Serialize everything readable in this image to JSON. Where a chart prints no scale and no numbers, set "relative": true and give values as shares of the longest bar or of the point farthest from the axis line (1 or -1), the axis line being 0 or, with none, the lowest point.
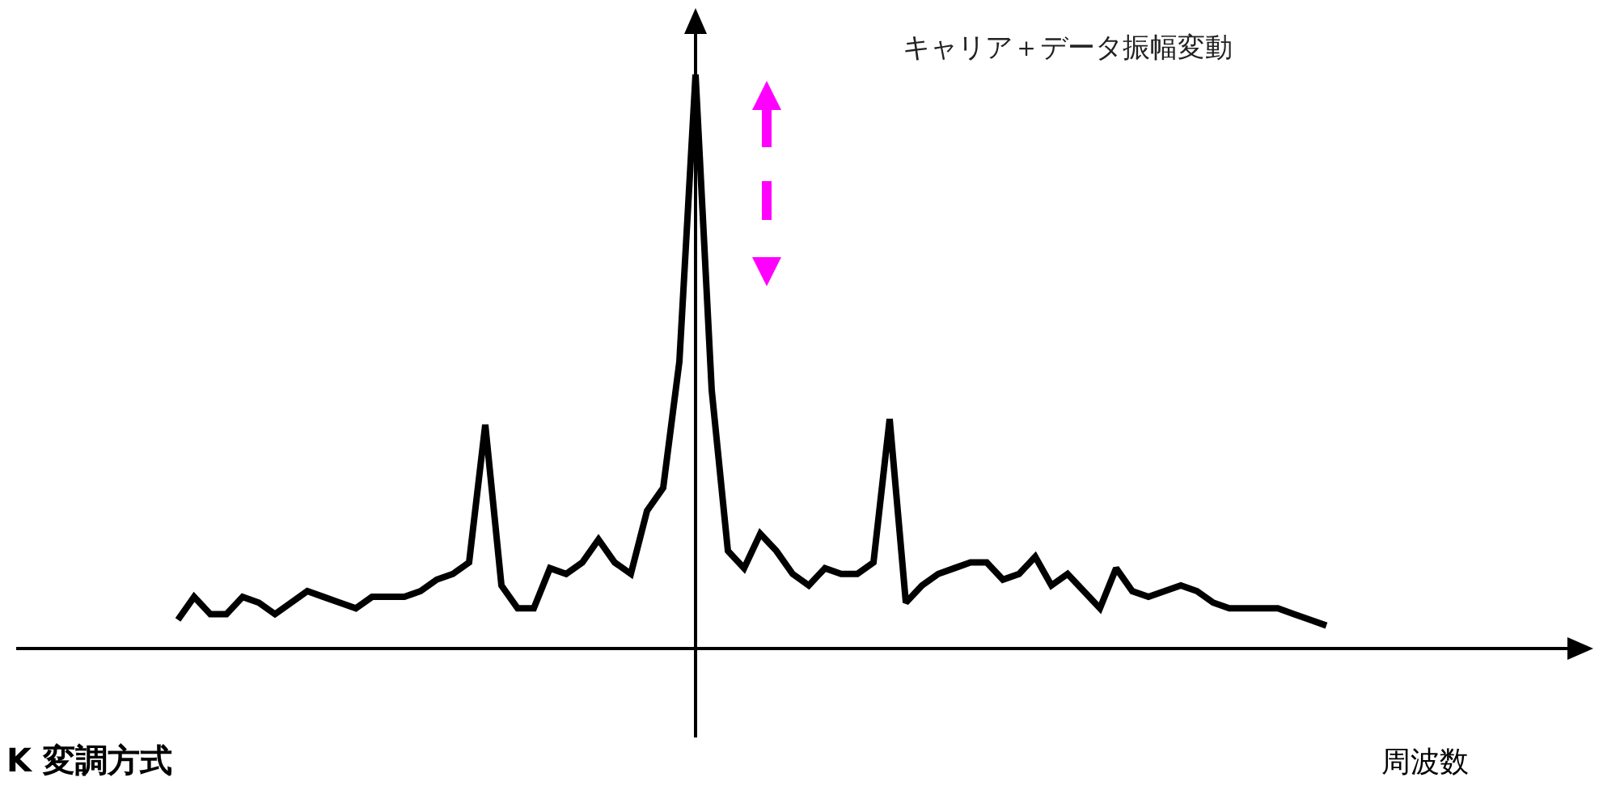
{
  "chart_data": {
    "type": "line",
    "relative": true,
    "xlabel": "周波数",
    "annotations": [
      "キャリア＋データ振幅変動",
      "K 変調方式"
    ],
    "categories": [
      null,
      null,
      null,
      null,
      null,
      null,
      null,
      null,
      null,
      null,
      null,
      null,
      null,
      null,
      null,
      null,
      null,
      null,
      null,
      null,
      null,
      null,
      null,
      null,
      null,
      null,
      null,
      null,
      null,
      null,
      null,
      null,
      null,
      null,
      null,
      null,
      null,
      null,
      null,
      null,
      null,
      null,
      null,
      null,
      null,
      null,
      null,
      null,
      null,
      null,
      null,
      null,
      null,
      null,
      null,
      null,
      null,
      null,
      null,
      null,
      null,
      null,
      null,
      null,
      null,
      null,
      null,
      null,
      null,
      null,
      null,
      null
    ],
    "series": [
      {
        "color": "#000000",
        "values": [
          0.05,
          0.09,
          0.06,
          0.06,
          0.09,
          0.08,
          0.06,
          0.08,
          0.1,
          0.09,
          0.08,
          0.07,
          0.09,
          0.09,
          0.09,
          0.1,
          0.12,
          0.13,
          0.15,
          0.39,
          0.11,
          0.07,
          0.07,
          0.14,
          0.13,
          0.15,
          0.19,
          0.15,
          0.13,
          0.24,
          0.28,
          0.5,
          1.0,
          0.45,
          0.17,
          0.14,
          0.2,
          0.17,
          0.13,
          0.11,
          0.14,
          0.13,
          0.13,
          0.15,
          0.4,
          0.08,
          0.11,
          0.13,
          0.14,
          0.15,
          0.15,
          0.12,
          0.13,
          0.16,
          0.11,
          0.13,
          0.1,
          0.07,
          0.14,
          0.1,
          0.09,
          0.1,
          0.11,
          0.1,
          0.08,
          0.07,
          0.07,
          0.07,
          0.07,
          0.06,
          0.05,
          0.04
        ]
      }
    ],
    "legend": false,
    "marker": "none",
    "line_style": "solid"
  }
}
